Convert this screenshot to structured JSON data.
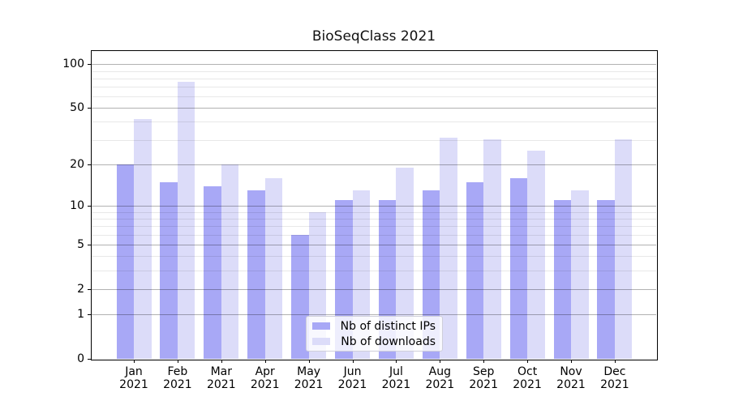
{
  "chart_data": {
    "type": "bar",
    "title": "BioSeqClass 2021",
    "categories": [
      "Jan 2021",
      "Feb 2021",
      "Mar 2021",
      "Apr 2021",
      "May 2021",
      "Jun 2021",
      "Jul 2021",
      "Aug 2021",
      "Sep 2021",
      "Oct 2021",
      "Nov 2021",
      "Dec 2021"
    ],
    "series": [
      {
        "name": "Nb of distinct IPs",
        "color": "#a8a8f6",
        "values": [
          20,
          15,
          14,
          13,
          6,
          11,
          11,
          13,
          15,
          16,
          11,
          11
        ]
      },
      {
        "name": "Nb of downloads",
        "color": "#dcdcf9",
        "values": [
          42,
          76,
          20,
          16,
          9,
          13,
          19,
          31,
          30,
          25,
          13,
          30
        ]
      }
    ],
    "xlabel": "",
    "ylabel": "",
    "y_scale": "log1p",
    "ylim": [
      0,
      125
    ],
    "y_ticks": [
      0,
      1,
      2,
      5,
      10,
      20,
      50,
      100
    ],
    "y_minor_gridlines": [
      3,
      4,
      6,
      7,
      8,
      9,
      30,
      40,
      60,
      70,
      80,
      90
    ],
    "grid": true,
    "legend_position": "lower center"
  }
}
